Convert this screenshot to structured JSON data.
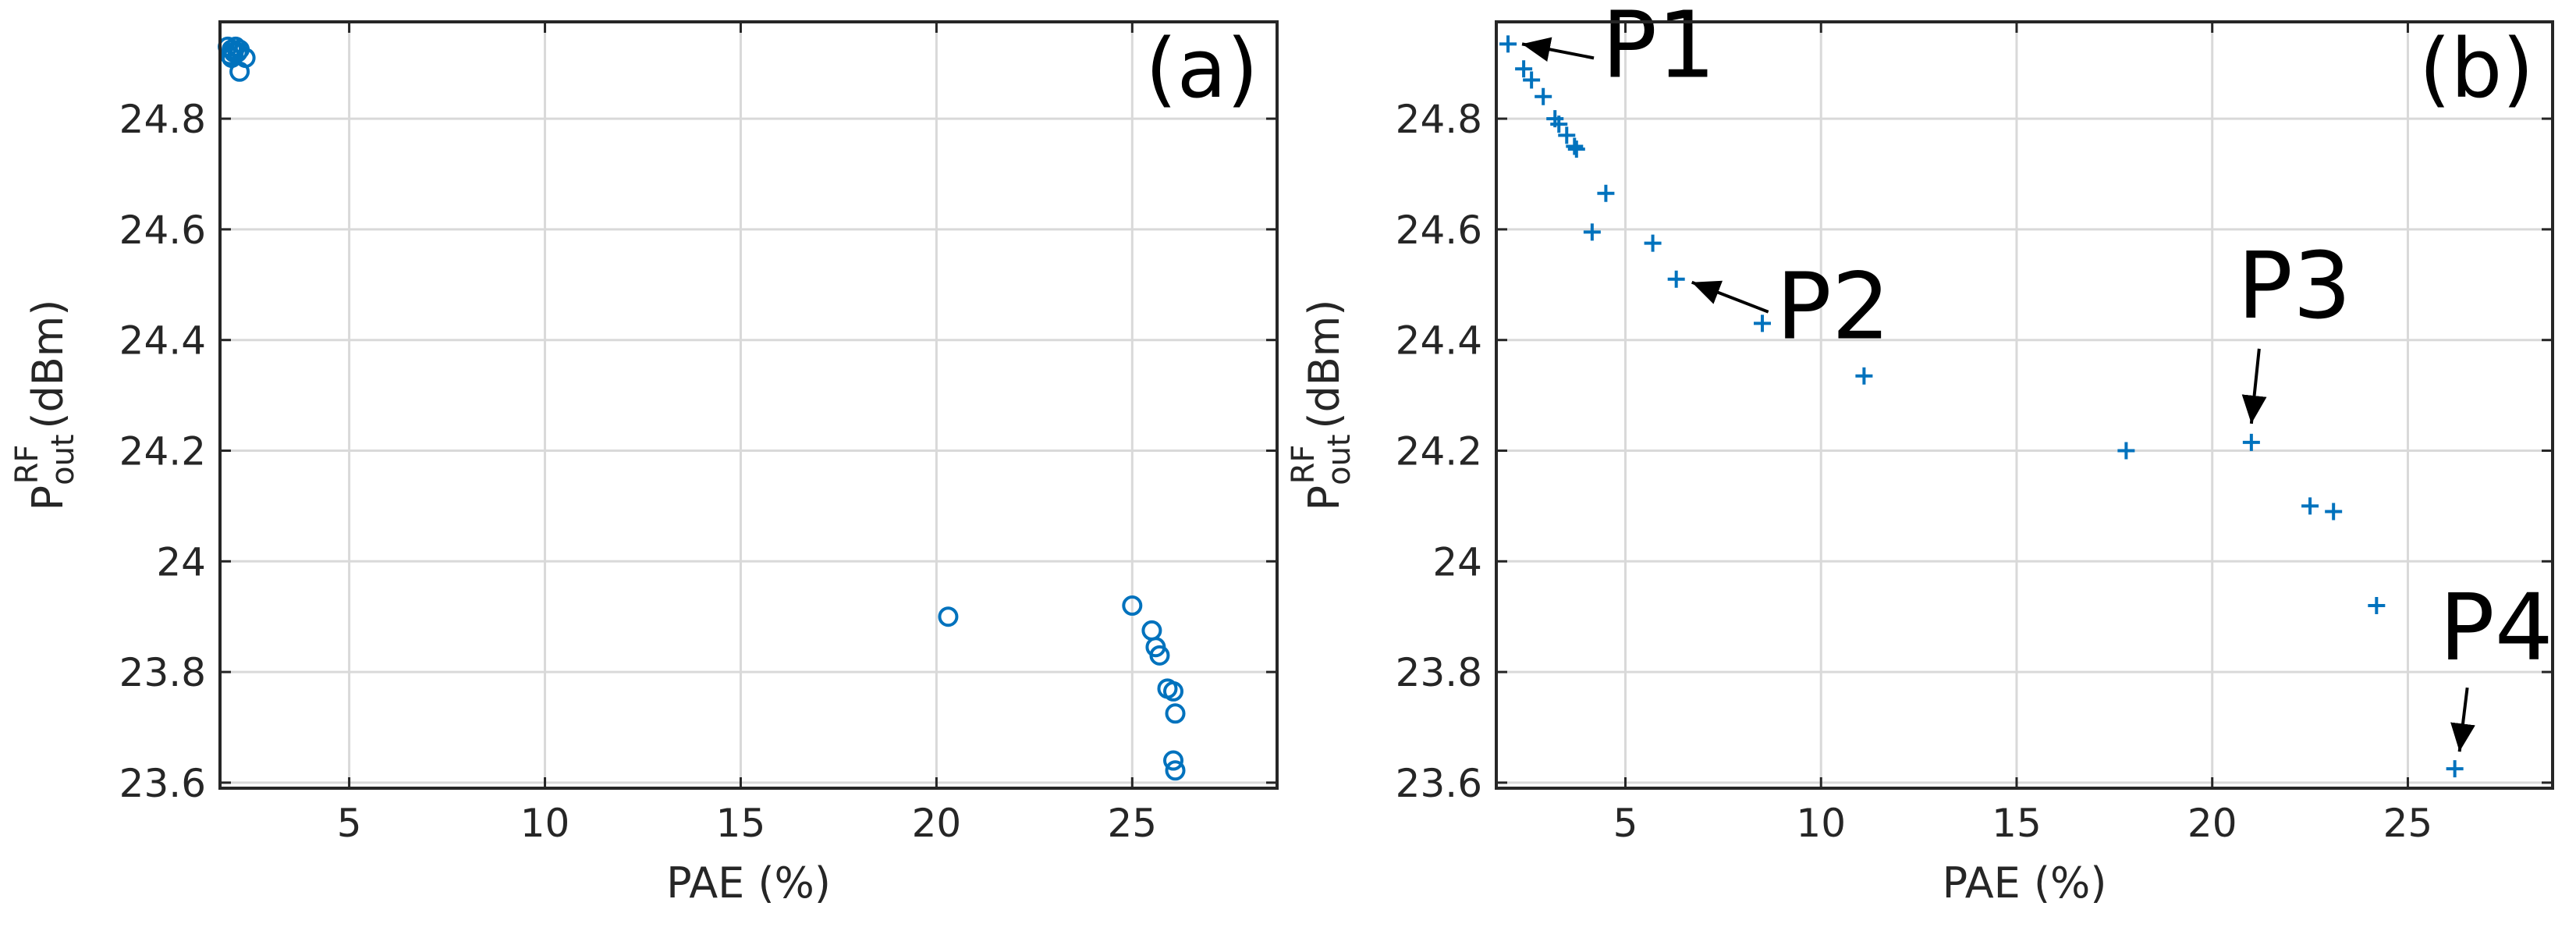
{
  "colors": {
    "marker": "#0072BD",
    "axis": "#262626",
    "grid": "#d9d9d9",
    "annotation": "#000000"
  },
  "chart_data": [
    {
      "type": "scatter",
      "panel": "(a)",
      "marker": "circle",
      "xlabel": "PAE (%)",
      "ylabel": {
        "base": "P",
        "sup": "RF",
        "sub": "out",
        "unit": "(dBm)"
      },
      "xlim": [
        1.7,
        28.7
      ],
      "ylim": [
        23.59,
        24.975
      ],
      "xticks": [
        5,
        10,
        15,
        20,
        25
      ],
      "xtick_labels": [
        "5",
        "10",
        "15",
        "20",
        "25"
      ],
      "yticks": [
        23.6,
        23.8,
        24.0,
        24.2,
        24.4,
        24.6,
        24.8
      ],
      "ytick_labels": [
        "23.6",
        "23.8",
        "24",
        "24.2",
        "24.4",
        "24.6",
        "24.8"
      ],
      "grid": true,
      "points": [
        {
          "x": 1.9,
          "y": 24.93
        },
        {
          "x": 2.0,
          "y": 24.925
        },
        {
          "x": 2.05,
          "y": 24.92
        },
        {
          "x": 1.95,
          "y": 24.915
        },
        {
          "x": 2.1,
          "y": 24.93
        },
        {
          "x": 2.2,
          "y": 24.925
        },
        {
          "x": 2.15,
          "y": 24.92
        },
        {
          "x": 2.0,
          "y": 24.91
        },
        {
          "x": 2.35,
          "y": 24.91
        },
        {
          "x": 2.2,
          "y": 24.885
        },
        {
          "x": 20.3,
          "y": 23.9
        },
        {
          "x": 25.0,
          "y": 23.92
        },
        {
          "x": 25.5,
          "y": 23.875
        },
        {
          "x": 25.6,
          "y": 23.845
        },
        {
          "x": 25.7,
          "y": 23.83
        },
        {
          "x": 25.9,
          "y": 23.77
        },
        {
          "x": 26.05,
          "y": 23.765
        },
        {
          "x": 26.1,
          "y": 23.725
        },
        {
          "x": 26.05,
          "y": 23.64
        },
        {
          "x": 26.1,
          "y": 23.622
        }
      ]
    },
    {
      "type": "scatter",
      "panel": "(b)",
      "marker": "plus",
      "xlabel": "PAE (%)",
      "ylabel": {
        "base": "P",
        "sup": "RF",
        "sub": "out",
        "unit": "(dBm)"
      },
      "xlim": [
        1.7,
        28.7
      ],
      "ylim": [
        23.59,
        24.975
      ],
      "xticks": [
        5,
        10,
        15,
        20,
        25
      ],
      "xtick_labels": [
        "5",
        "10",
        "15",
        "20",
        "25"
      ],
      "yticks": [
        23.6,
        23.8,
        24.0,
        24.2,
        24.4,
        24.6,
        24.8
      ],
      "ytick_labels": [
        "23.6",
        "23.8",
        "24",
        "24.2",
        "24.4",
        "24.6",
        "24.8"
      ],
      "grid": true,
      "points": [
        {
          "x": 2.0,
          "y": 24.935
        },
        {
          "x": 2.4,
          "y": 24.89
        },
        {
          "x": 2.6,
          "y": 24.87
        },
        {
          "x": 2.9,
          "y": 24.84
        },
        {
          "x": 3.2,
          "y": 24.8
        },
        {
          "x": 3.3,
          "y": 24.79
        },
        {
          "x": 3.5,
          "y": 24.77
        },
        {
          "x": 3.7,
          "y": 24.75
        },
        {
          "x": 3.75,
          "y": 24.745
        },
        {
          "x": 4.5,
          "y": 24.665
        },
        {
          "x": 4.15,
          "y": 24.595
        },
        {
          "x": 5.7,
          "y": 24.575
        },
        {
          "x": 6.3,
          "y": 24.51
        },
        {
          "x": 8.5,
          "y": 24.43
        },
        {
          "x": 11.1,
          "y": 24.335
        },
        {
          "x": 17.8,
          "y": 24.2
        },
        {
          "x": 21.0,
          "y": 24.215
        },
        {
          "x": 22.5,
          "y": 24.1
        },
        {
          "x": 23.1,
          "y": 24.09
        },
        {
          "x": 24.2,
          "y": 23.92
        },
        {
          "x": 26.2,
          "y": 23.625
        }
      ],
      "annotations": [
        {
          "label": "P1",
          "target": {
            "x": 2.0,
            "y": 24.935
          }
        },
        {
          "label": "P2",
          "target": {
            "x": 6.3,
            "y": 24.51
          }
        },
        {
          "label": "P3",
          "target": {
            "x": 21.0,
            "y": 24.215
          }
        },
        {
          "label": "P4",
          "target": {
            "x": 26.2,
            "y": 23.625
          }
        }
      ]
    }
  ]
}
